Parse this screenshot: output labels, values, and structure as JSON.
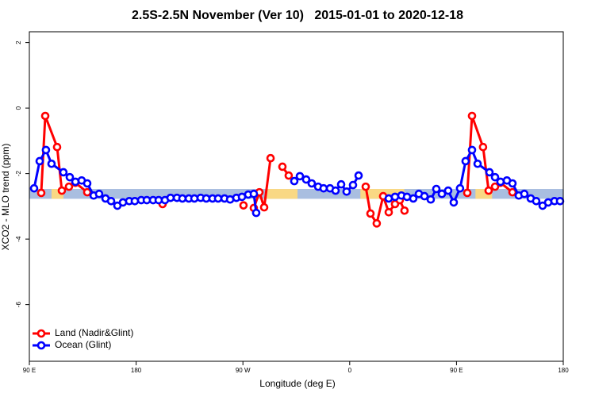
{
  "chart_data": {
    "type": "line",
    "title": "2.5S-2.5N November (Ver 10)   2015-01-01 to 2020-12-18",
    "xlabel": "Longitude (deg E)",
    "ylabel": "XCO2 - MLO trend (ppm)",
    "xlim": [
      90,
      540
    ],
    "xticks": [
      {
        "value": 90,
        "label": "90 E"
      },
      180,
      {
        "value": 270,
        "label": "90 W"
      },
      {
        "value": 360,
        "label": "0"
      },
      {
        "value": 450,
        "label": "90 E"
      },
      {
        "value": 540,
        "label": "180"
      }
    ],
    "ylim": [
      -7.73,
      2.33
    ],
    "yticks": [
      2,
      0,
      -2,
      -4,
      -6
    ],
    "legend": "bottomleft",
    "band": {
      "ylim": [
        -2.77,
        -2.47
      ],
      "color": "#a9bee0",
      "land_color": "#f9d884",
      "land_x": [
        [
          108.7,
          118.7
        ],
        [
          289,
          316
        ],
        [
          369,
          406
        ],
        [
          466,
          480
        ]
      ]
    },
    "series": [
      {
        "name": "Land (Nadir&Glint)",
        "color": "#ff0000",
        "x": [
          100.0,
          103.4,
          113.4,
          117.4,
          123.4,
          128.8,
          138.8,
          null,
          202.3,
          null,
          270.5,
          null,
          279.2,
          283.9,
          287.9,
          293.3,
          null,
          303.3,
          308.6,
          null,
          373.5,
          377.5,
          382.8,
          388.2,
          392.9,
          398.2,
          402.2,
          406.2,
          null,
          459.1,
          463.1,
          472.4,
          477.1,
          482.5,
          487.1,
          497.2
        ],
        "values": [
          -2.59,
          -0.24,
          -1.19,
          -2.52,
          -2.4,
          -2.28,
          -2.57,
          null,
          -2.93,
          null,
          -2.97,
          null,
          -3.05,
          -2.57,
          -3.03,
          -1.53,
          null,
          -1.79,
          -2.06,
          null,
          -2.4,
          -3.22,
          -3.52,
          -2.69,
          -3.18,
          -2.93,
          -2.81,
          -3.13,
          null,
          -2.59,
          -0.24,
          -1.19,
          -2.52,
          -2.4,
          -2.28,
          -2.57
        ]
      },
      {
        "name": "Ocean (Glint)",
        "color": "#0000ff",
        "x": [
          94.0,
          98.7,
          104.0,
          108.7,
          118.7,
          124.1,
          128.8,
          134.1,
          138.8,
          144.2,
          148.8,
          154.2,
          158.9,
          164.2,
          168.9,
          174.2,
          178.9,
          184.3,
          189.0,
          194.3,
          199.0,
          204.3,
          209.0,
          214.4,
          219.0,
          224.4,
          229.1,
          234.4,
          239.1,
          244.4,
          249.1,
          254.5,
          259.2,
          264.5,
          269.2,
          274.5,
          279.2,
          281.2,
          null,
          313.3,
          318.0,
          323.3,
          328.0,
          333.4,
          338.0,
          343.4,
          348.1,
          352.8,
          357.4,
          362.8,
          367.5,
          null,
          392.9,
          398.2,
          403.6,
          408.3,
          413.6,
          418.3,
          423.0,
          428.3,
          433.0,
          437.7,
          443.0,
          447.7,
          453.0,
          457.7,
          463.1,
          467.8,
          477.8,
          482.5,
          487.1,
          492.5,
          497.2,
          502.5,
          507.2,
          512.6,
          517.2,
          522.6,
          527.3,
          532.6,
          537.3
        ],
        "values": [
          -2.45,
          -1.62,
          -1.28,
          -1.7,
          -1.96,
          -2.11,
          -2.25,
          -2.21,
          -2.3,
          -2.67,
          -2.62,
          -2.76,
          -2.84,
          -2.98,
          -2.88,
          -2.84,
          -2.84,
          -2.81,
          -2.81,
          -2.81,
          -2.81,
          -2.81,
          -2.74,
          -2.74,
          -2.76,
          -2.76,
          -2.76,
          -2.74,
          -2.76,
          -2.76,
          -2.76,
          -2.76,
          -2.79,
          -2.74,
          -2.71,
          -2.64,
          -2.62,
          -3.2,
          null,
          -2.23,
          -2.08,
          -2.18,
          -2.3,
          -2.4,
          -2.45,
          -2.45,
          -2.52,
          -2.33,
          -2.55,
          -2.35,
          -2.06,
          null,
          -2.76,
          -2.71,
          -2.67,
          -2.71,
          -2.76,
          -2.62,
          -2.69,
          -2.79,
          -2.47,
          -2.62,
          -2.52,
          -2.88,
          -2.45,
          -1.62,
          -1.28,
          -1.7,
          -1.96,
          -2.11,
          -2.25,
          -2.21,
          -2.3,
          -2.67,
          -2.62,
          -2.76,
          -2.84,
          -2.98,
          -2.88,
          -2.84,
          -2.84
        ]
      }
    ]
  }
}
